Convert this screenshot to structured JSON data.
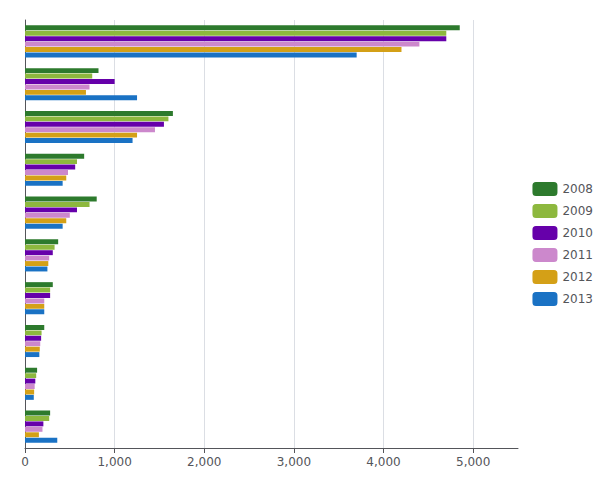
{
  "chart_data": {
    "type": "bar",
    "orientation": "horizontal",
    "categories": [
      null,
      null,
      null,
      null,
      null,
      null,
      null,
      null,
      null,
      null
    ],
    "series": [
      {
        "name": "2008",
        "color": "#2d7a2d",
        "values": [
          4850,
          820,
          1650,
          660,
          800,
          370,
          310,
          215,
          135,
          280
        ]
      },
      {
        "name": "2009",
        "color": "#8db83e",
        "values": [
          4700,
          750,
          1600,
          580,
          720,
          330,
          280,
          185,
          125,
          270
        ]
      },
      {
        "name": "2010",
        "color": "#6600aa",
        "values": [
          4700,
          1000,
          1550,
          560,
          580,
          310,
          280,
          180,
          115,
          205
        ]
      },
      {
        "name": "2011",
        "color": "#cc88cc",
        "values": [
          4400,
          720,
          1450,
          480,
          500,
          270,
          215,
          170,
          108,
          195
        ]
      },
      {
        "name": "2012",
        "color": "#d4a017",
        "values": [
          4200,
          680,
          1250,
          460,
          460,
          260,
          215,
          165,
          102,
          155
        ]
      },
      {
        "name": "2013",
        "color": "#1a72c4",
        "values": [
          3700,
          1250,
          1200,
          420,
          420,
          250,
          215,
          160,
          98,
          360
        ]
      }
    ],
    "xlim": [
      0,
      5500
    ],
    "xticks": [
      0,
      1000,
      2000,
      3000,
      4000,
      5000
    ],
    "grid": true,
    "legend": "right",
    "tick_labels": "x"
  }
}
